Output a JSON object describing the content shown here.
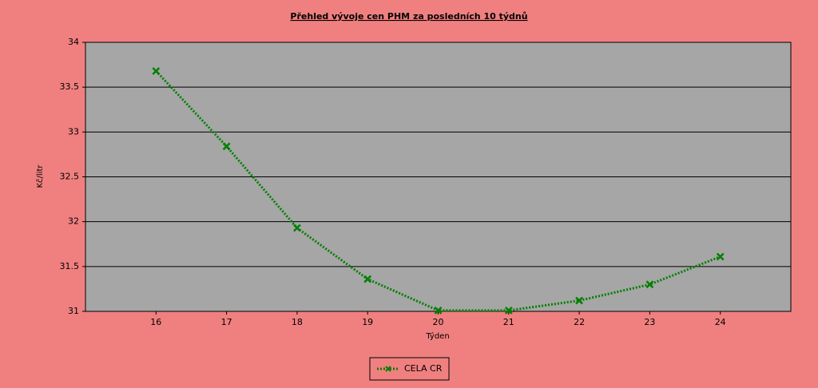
{
  "chart_data": {
    "type": "line",
    "title": "Přehled vývoje cen PHM za posledních 10 týdnů",
    "x_label": "Týden",
    "y_label": "Kč/litr",
    "x": [
      16,
      17,
      18,
      19,
      20,
      21,
      22,
      23,
      24
    ],
    "xlim": [
      15,
      25
    ],
    "xticks": [
      16,
      17,
      18,
      19,
      20,
      21,
      22,
      23,
      24
    ],
    "ylim": [
      31,
      34
    ],
    "yticks": [
      31,
      31.5,
      32,
      32.5,
      33,
      33.5,
      34
    ],
    "grid": true,
    "legend": "bottom",
    "series": [
      {
        "name": "CELA CR",
        "color": "#008000",
        "values": [
          33.68,
          32.84,
          31.93,
          31.36,
          31.01,
          31.01,
          31.12,
          31.3,
          31.61
        ]
      }
    ]
  }
}
